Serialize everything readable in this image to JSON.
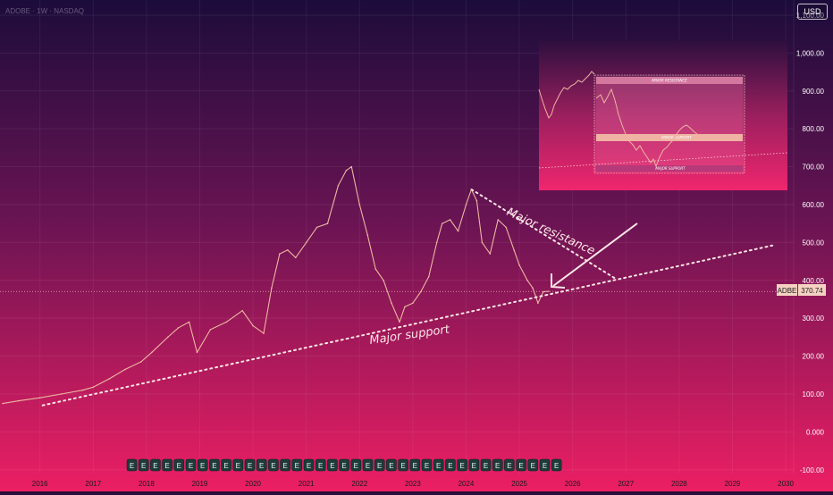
{
  "header": {
    "symbol_blurred": "ADOBE · 1W · NASDAQ",
    "currency": "USD"
  },
  "price_tag": {
    "symbol": "ADBE",
    "value": "370.74"
  },
  "colors": {
    "bg_top": "#1c0c3b",
    "bg_bottom": "#ec1f63",
    "price": "#ecb6a0",
    "line": "#ffe4e4"
  },
  "annotations": {
    "major_support": "Major support",
    "major_resistance": "Major resistance"
  },
  "inset": {
    "minor_resistance": "MINOR RESISTANCE",
    "minor_support": "MINOR SUPPORT",
    "major_support": "MAJOR SUPPORT"
  },
  "chart_data": {
    "type": "line",
    "x_unit": "year",
    "x_ticks": [
      "2016",
      "2017",
      "2018",
      "2019",
      "2020",
      "2021",
      "2022",
      "2023",
      "2024",
      "2025",
      "2026",
      "2027",
      "2028",
      "2029",
      "2030"
    ],
    "y_ticks": [
      "-100.00",
      "0.000",
      "100.00",
      "200.00",
      "300.00",
      "400.00",
      "500.00",
      "600.00",
      "700.00",
      "800.00",
      "900.00",
      "1,000.00",
      "1,100.00"
    ],
    "ylim": [
      -110,
      1140
    ],
    "xlim": [
      2015.25,
      2030.15
    ],
    "series": [
      {
        "x": [
          2015.3,
          2015.6,
          2016.0,
          2016.4,
          2016.8,
          2017.0,
          2017.3,
          2017.6,
          2017.9,
          2018.1,
          2018.4,
          2018.6,
          2018.8,
          2018.95,
          2019.2,
          2019.5,
          2019.8,
          2020.0,
          2020.2,
          2020.35,
          2020.5,
          2020.65,
          2020.8,
          2021.0,
          2021.2,
          2021.4,
          2021.6,
          2021.75,
          2021.85,
          2022.0,
          2022.15,
          2022.3,
          2022.45,
          2022.6,
          2022.75,
          2022.85,
          2023.0,
          2023.15,
          2023.3,
          2023.45,
          2023.55,
          2023.7,
          2023.85,
          2024.0,
          2024.1,
          2024.2,
          2024.3,
          2024.45,
          2024.6,
          2024.75,
          2024.9,
          2025.0,
          2025.15,
          2025.25,
          2025.35,
          2025.45,
          2025.55
        ],
        "y": [
          75,
          82,
          90,
          100,
          110,
          118,
          140,
          165,
          185,
          210,
          250,
          275,
          290,
          210,
          270,
          290,
          320,
          280,
          260,
          380,
          470,
          480,
          460,
          500,
          540,
          550,
          650,
          690,
          700,
          600,
          520,
          430,
          400,
          340,
          290,
          330,
          340,
          370,
          410,
          500,
          550,
          560,
          530,
          600,
          640,
          610,
          500,
          470,
          560,
          540,
          480,
          440,
          400,
          380,
          340,
          370,
          371
        ]
      }
    ]
  }
}
